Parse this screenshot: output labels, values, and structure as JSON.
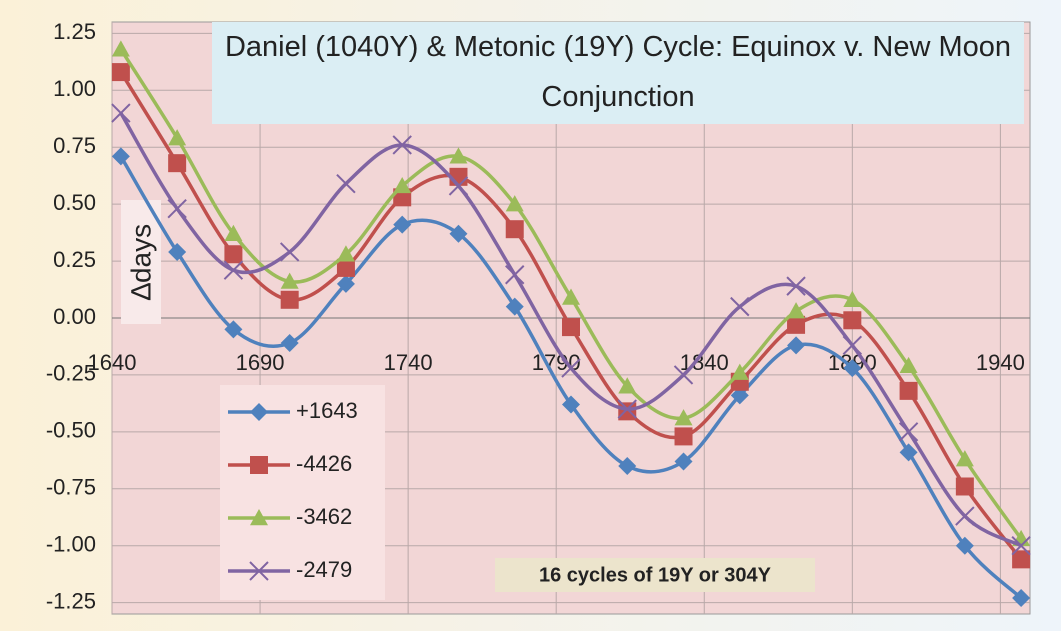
{
  "chart_data": {
    "type": "line",
    "title": "Daniel  (1040Y) & Metonic (19Y) Cycle: Equinox v. New Moon Conjunction",
    "ylabel": "∆days",
    "annotation": "16 cycles of 19Y or 304Y",
    "x": [
      1643,
      1662,
      1681,
      1700,
      1719,
      1738,
      1757,
      1776,
      1795,
      1814,
      1833,
      1852,
      1871,
      1890,
      1909,
      1928,
      1947
    ],
    "series": [
      {
        "name": "+1643",
        "color": "#4f81bd",
        "marker": "diamond",
        "values": [
          0.71,
          0.29,
          -0.05,
          -0.11,
          0.15,
          0.41,
          0.37,
          0.05,
          -0.38,
          -0.65,
          -0.63,
          -0.34,
          -0.12,
          -0.22,
          -0.59,
          -1.0,
          -1.23
        ]
      },
      {
        "name": "-4426",
        "color": "#c0504d",
        "marker": "square",
        "values": [
          1.08,
          0.68,
          0.28,
          0.08,
          0.22,
          0.53,
          0.62,
          0.39,
          -0.04,
          -0.41,
          -0.52,
          -0.28,
          -0.03,
          -0.01,
          -0.32,
          -0.74,
          -1.06
        ]
      },
      {
        "name": "-3462",
        "color": "#9bbb59",
        "marker": "triangle",
        "values": [
          1.18,
          0.79,
          0.37,
          0.16,
          0.28,
          0.58,
          0.71,
          0.5,
          0.09,
          -0.3,
          -0.44,
          -0.24,
          0.03,
          0.08,
          -0.21,
          -0.62,
          -0.97
        ]
      },
      {
        "name": "-2479",
        "color": "#8064a2",
        "marker": "x",
        "values": [
          0.9,
          0.48,
          0.21,
          0.29,
          0.59,
          0.76,
          0.58,
          0.19,
          -0.22,
          -0.4,
          -0.25,
          0.05,
          0.14,
          -0.12,
          -0.5,
          -0.87,
          -1.0
        ]
      }
    ],
    "xlim": [
      1640,
      1950
    ],
    "xticks": [
      1640,
      1690,
      1740,
      1790,
      1840,
      1890,
      1940
    ],
    "ylim": [
      -1.3,
      1.3
    ],
    "yticks": [
      1.25,
      {
        "value": 1.0,
        "label": "1.00"
      },
      0.75,
      {
        "value": 0.5,
        "label": "0.50"
      },
      0.25,
      {
        "value": 0.0,
        "label": "0.00"
      },
      -0.25,
      {
        "value": -0.5,
        "label": "-0.50"
      },
      -0.75,
      {
        "value": -1.0,
        "label": "-1.00"
      },
      -1.25
    ],
    "grid": true
  }
}
